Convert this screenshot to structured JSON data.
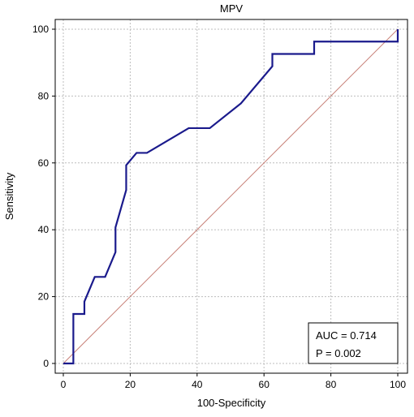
{
  "chart_data": {
    "type": "line",
    "title": "MPV",
    "xlabel": "100-Specificity",
    "ylabel": "Sensitivity",
    "xlim": [
      0,
      100
    ],
    "ylim": [
      0,
      100
    ],
    "xticks": [
      0,
      20,
      40,
      60,
      80,
      100
    ],
    "yticks": [
      0,
      20,
      40,
      60,
      80,
      100
    ],
    "grid": true,
    "series": [
      {
        "color": "#1a1a8c",
        "points": [
          [
            0,
            0
          ],
          [
            3,
            0
          ],
          [
            3,
            3.7
          ],
          [
            3,
            14.8
          ],
          [
            6.3,
            14.8
          ],
          [
            6.3,
            18.5
          ],
          [
            9.4,
            25.9
          ],
          [
            12.5,
            25.9
          ],
          [
            15.6,
            33.3
          ],
          [
            15.6,
            40.7
          ],
          [
            18.8,
            51.9
          ],
          [
            18.8,
            59.3
          ],
          [
            21.9,
            63
          ],
          [
            25,
            63
          ],
          [
            37.5,
            70.4
          ],
          [
            43.8,
            70.4
          ],
          [
            53.1,
            77.8
          ],
          [
            62.5,
            88.9
          ],
          [
            62.5,
            92.6
          ],
          [
            75,
            92.6
          ],
          [
            75,
            96.3
          ],
          [
            100,
            96.3
          ],
          [
            100,
            100
          ]
        ]
      },
      {
        "color": "#c8827a",
        "points": [
          [
            0,
            0
          ],
          [
            100,
            100
          ]
        ]
      }
    ],
    "annotations": {
      "auc": "AUC = 0.714",
      "p": "P = 0.002"
    }
  }
}
